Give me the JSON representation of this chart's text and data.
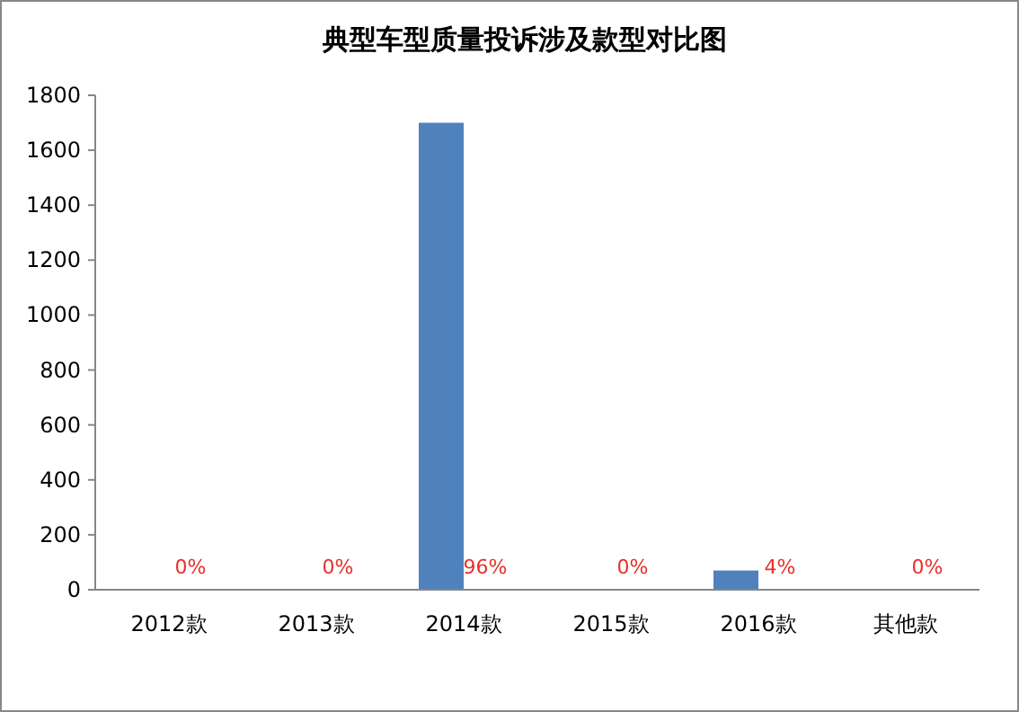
{
  "chart_data": {
    "type": "bar",
    "title": "典型车型质量投诉涉及款型对比图",
    "categories": [
      "2012款",
      "2013款",
      "2014款",
      "2015款",
      "2016款",
      "其他款"
    ],
    "values": [
      0,
      0,
      1700,
      0,
      70,
      0
    ],
    "annotations": [
      {
        "text": "0%",
        "x": "2012款",
        "y": 0
      },
      {
        "text": "0%",
        "x": "2013款",
        "y": 0
      },
      {
        "text": "96%",
        "x": "2014款",
        "y": 0
      },
      {
        "text": "0%",
        "x": "2015款",
        "y": 0
      },
      {
        "text": "4%",
        "x": "2016款",
        "y": 0
      },
      {
        "text": "0%",
        "x": "其他款",
        "y": 0
      }
    ],
    "color": "#4f81bd",
    "ylim": [
      0,
      1800
    ],
    "yticks": [
      0,
      200,
      400,
      600,
      800,
      1000,
      1200,
      1400,
      1600,
      1800
    ],
    "grid": false
  }
}
